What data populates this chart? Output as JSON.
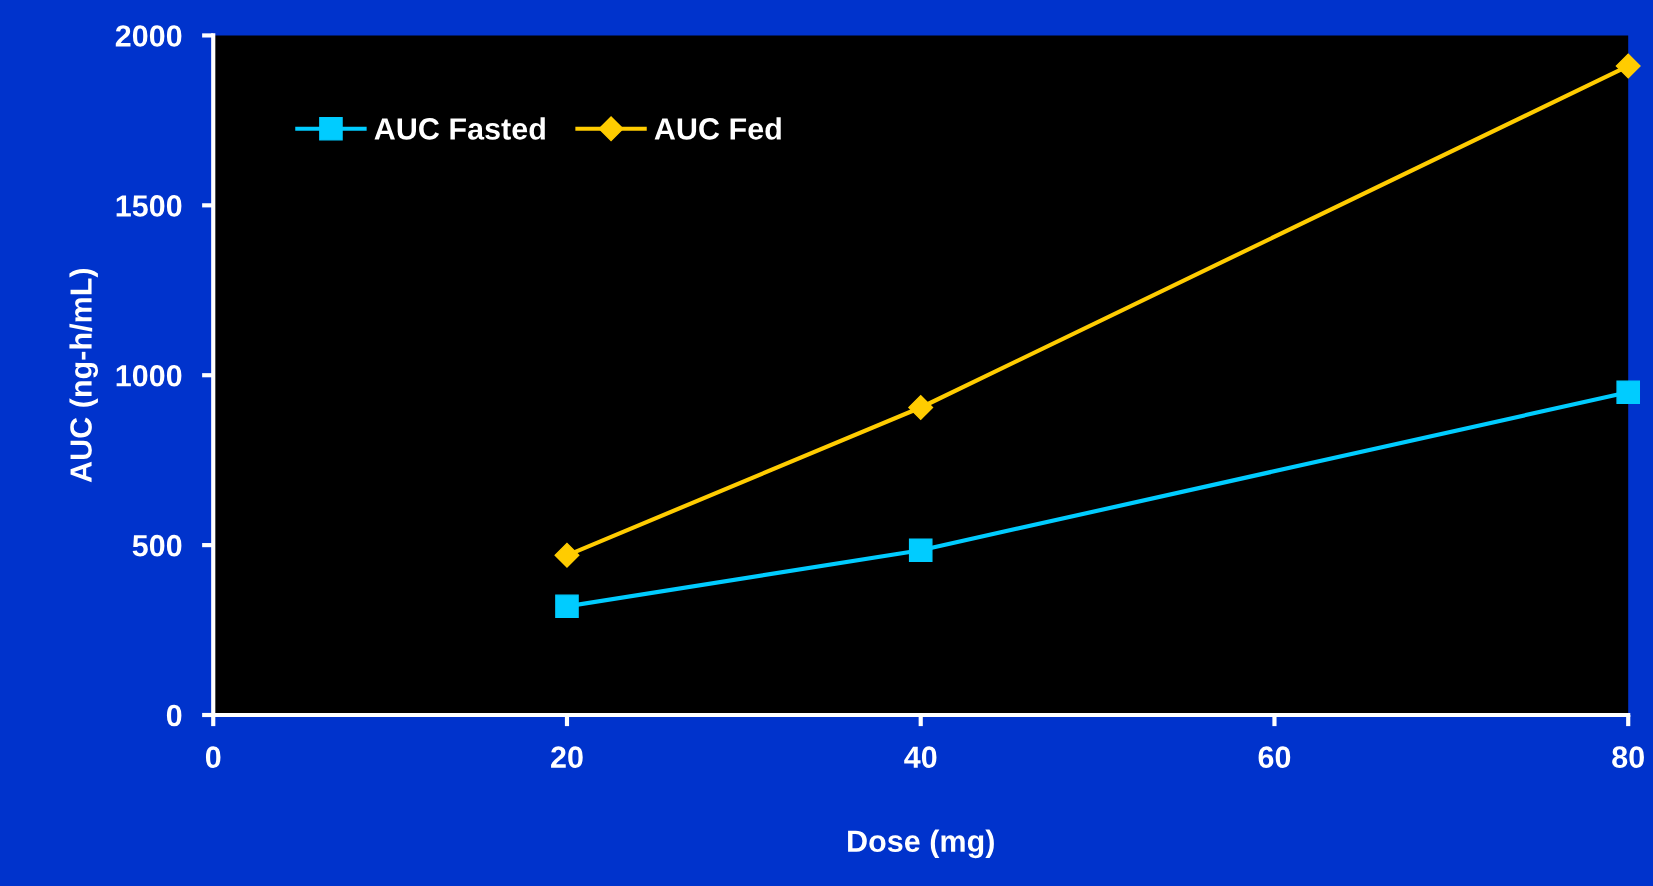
{
  "chart_data": {
    "type": "line",
    "xlabel": "Dose (mg)",
    "ylabel": "AUC (ng-h/mL)",
    "x": [
      20,
      40,
      80
    ],
    "series": [
      {
        "name": "AUC Fasted",
        "color": "#00ccff",
        "values": [
          320,
          485,
          950
        ],
        "marker": "square"
      },
      {
        "name": "AUC Fed",
        "color": "#ffcc00",
        "values": [
          470,
          905,
          1910
        ],
        "marker": "diamond"
      }
    ],
    "xlim": [
      0,
      80
    ],
    "xticks": [
      0,
      20,
      40,
      60,
      80
    ],
    "ylim": [
      0,
      2000
    ],
    "yticks": [
      0,
      500,
      1000,
      1500,
      2000
    ],
    "grid": false,
    "legend": "top left",
    "line_style": "solid"
  }
}
